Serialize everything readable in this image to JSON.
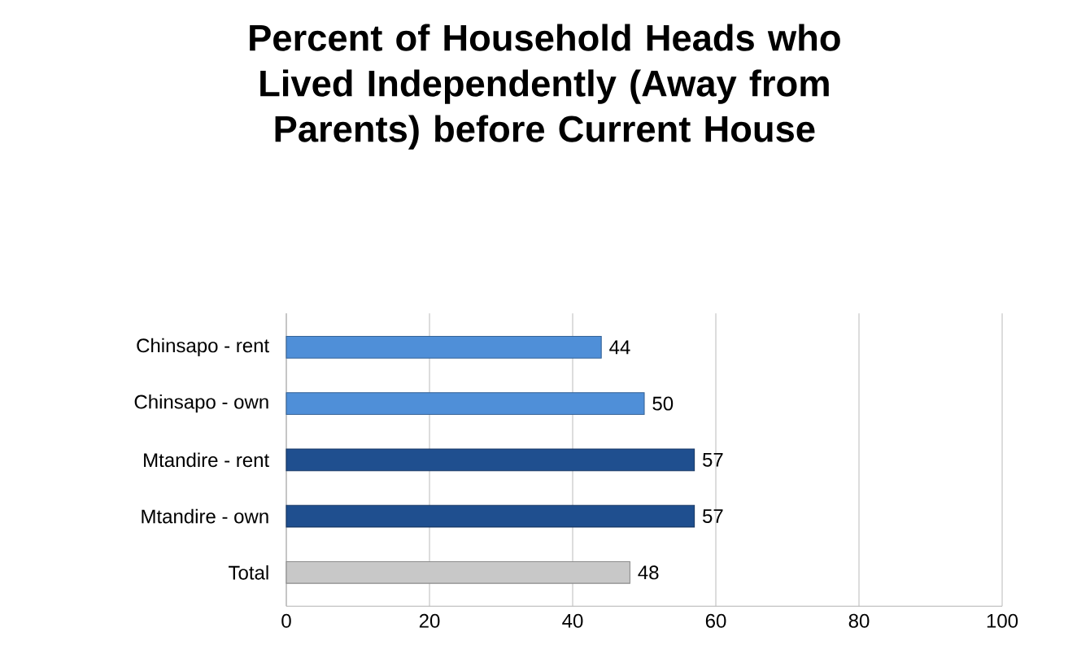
{
  "chart_data": {
    "type": "bar",
    "orientation": "horizontal",
    "title": "Percent of Household Heads who Lived Independently (Away from Parents) before Current House",
    "categories": [
      "Chinsapo - rent",
      "Chinsapo - own",
      "Mtandire - rent",
      "Mtandire - own",
      "Total"
    ],
    "values": [
      44,
      50,
      57,
      57,
      48
    ],
    "colors": [
      "#4f8fd8",
      "#4f8fd8",
      "#1f4f8f",
      "#1f4f8f",
      "#c8c8c8"
    ],
    "xlim": [
      0,
      100
    ],
    "xticks": [
      0,
      20,
      40,
      60,
      80,
      100
    ],
    "grid": "x",
    "data_labels": true
  }
}
